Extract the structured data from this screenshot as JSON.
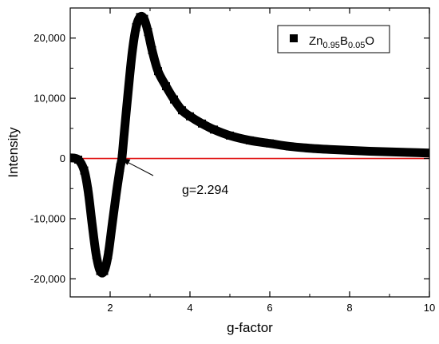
{
  "chart_data": {
    "type": "line",
    "xlabel": "g-factor",
    "ylabel": "Intensity",
    "xlim": [
      1,
      10
    ],
    "ylim": [
      -23000,
      25000
    ],
    "x_ticks": [
      2,
      4,
      6,
      8,
      10
    ],
    "x_tick_labels": [
      "2",
      "4",
      "6",
      "8",
      "10"
    ],
    "y_ticks": [
      -20000,
      -10000,
      0,
      10000,
      20000
    ],
    "y_tick_labels": [
      "-20,000",
      "-10,000",
      "0",
      "10,000",
      "20,000"
    ],
    "grid": false,
    "legend": {
      "placement": "top-right",
      "marker": "square",
      "label_parts": [
        {
          "text": "Zn",
          "sub": false
        },
        {
          "text": "0.95",
          "sub": true
        },
        {
          "text": "B",
          "sub": false
        },
        {
          "text": "0.05",
          "sub": true
        },
        {
          "text": "O",
          "sub": false
        }
      ]
    },
    "baseline": {
      "y": 0,
      "color": "#e01010"
    },
    "annotation": {
      "text": "g=2.294",
      "target_x": 2.294,
      "target_y": 0
    },
    "series": [
      {
        "name": "Zn0.95B0.05O",
        "color": "#000000",
        "x": [
          1.0,
          1.2,
          1.35,
          1.45,
          1.55,
          1.65,
          1.75,
          1.85,
          1.95,
          2.05,
          2.15,
          2.25,
          2.294,
          2.35,
          2.45,
          2.55,
          2.65,
          2.75,
          2.85,
          2.95,
          3.05,
          3.2,
          3.4,
          3.6,
          3.8,
          4.0,
          4.3,
          4.6,
          5.0,
          5.5,
          6.0,
          6.5,
          7.0,
          7.5,
          8.0,
          8.5,
          9.0,
          9.5,
          10.0
        ],
        "y": [
          100,
          -200,
          -2000,
          -5500,
          -11000,
          -16000,
          -18700,
          -18700,
          -16000,
          -11000,
          -6000,
          -1500,
          0,
          4000,
          11000,
          17500,
          21800,
          23500,
          23200,
          21000,
          18000,
          14500,
          12000,
          9800,
          8000,
          7000,
          5800,
          4800,
          3800,
          3000,
          2500,
          2000,
          1700,
          1500,
          1350,
          1200,
          1100,
          1000,
          900
        ]
      }
    ]
  }
}
